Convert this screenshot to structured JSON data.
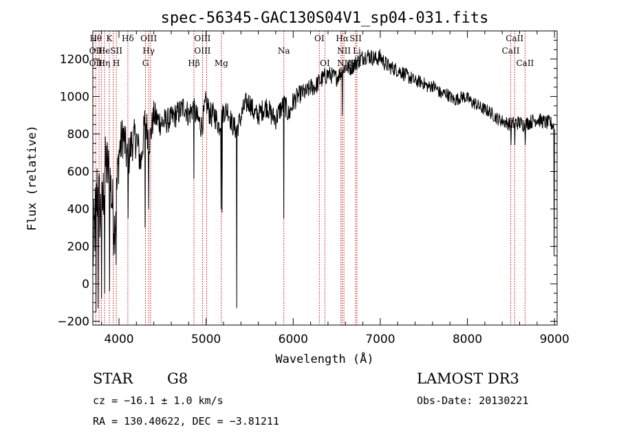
{
  "chart_data": {
    "type": "line",
    "title": "spec-56345-GAC130S04V1_sp04-031.fits",
    "xlabel": "Wavelength (Å)",
    "ylabel": "Flux (relative)",
    "xlim": [
      3700,
      9030
    ],
    "ylim": [
      -220,
      1350
    ],
    "xticks": [
      4000,
      5000,
      6000,
      7000,
      8000,
      9000
    ],
    "yticks": [
      -200,
      0,
      200,
      400,
      600,
      800,
      1000,
      1200
    ],
    "xtick_labels": [
      "4000",
      "5000",
      "6000",
      "7000",
      "8000",
      "9000"
    ],
    "ytick_labels": [
      "−200",
      "0",
      "200",
      "400",
      "600",
      "800",
      "1000",
      "1200"
    ],
    "grid": false,
    "line_color": "#000000",
    "marker_color": "#cc0000",
    "spectrum": {
      "x": [
        3700,
        3750,
        3800,
        3850,
        3900,
        3950,
        4000,
        4050,
        4100,
        4150,
        4200,
        4250,
        4300,
        4350,
        4400,
        4450,
        4500,
        4550,
        4600,
        4650,
        4700,
        4750,
        4800,
        4850,
        4900,
        4950,
        5000,
        5050,
        5100,
        5150,
        5200,
        5250,
        5300,
        5350,
        5400,
        5450,
        5500,
        5550,
        5600,
        5650,
        5700,
        5750,
        5800,
        5850,
        5900,
        5950,
        6000,
        6050,
        6100,
        6150,
        6200,
        6250,
        6300,
        6350,
        6400,
        6450,
        6500,
        6550,
        6600,
        6650,
        6700,
        6750,
        6800,
        6850,
        6900,
        6950,
        7000,
        7050,
        7100,
        7150,
        7200,
        7250,
        7300,
        7350,
        7400,
        7450,
        7500,
        7550,
        7600,
        7650,
        7700,
        7750,
        7800,
        7850,
        7900,
        7950,
        8000,
        8050,
        8100,
        8150,
        8200,
        8250,
        8300,
        8350,
        8400,
        8450,
        8500,
        8550,
        8600,
        8650,
        8700,
        8750,
        8800,
        8850,
        8900,
        8950,
        9000
      ],
      "y": [
        150,
        500,
        350,
        650,
        550,
        300,
        700,
        800,
        650,
        760,
        780,
        640,
        880,
        760,
        900,
        870,
        860,
        870,
        880,
        900,
        920,
        950,
        900,
        940,
        880,
        840,
        970,
        900,
        900,
        840,
        920,
        930,
        850,
        820,
        890,
        960,
        970,
        910,
        900,
        930,
        950,
        900,
        880,
        930,
        960,
        900,
        970,
        1000,
        1020,
        1020,
        1050,
        1050,
        1080,
        1100,
        1120,
        1110,
        1100,
        1130,
        1160,
        1150,
        1170,
        1190,
        1210,
        1220,
        1210,
        1200,
        1210,
        1180,
        1160,
        1150,
        1140,
        1130,
        1110,
        1100,
        1080,
        1080,
        1070,
        1050,
        1060,
        1040,
        1010,
        1020,
        1000,
        980,
        990,
        1000,
        990,
        970,
        960,
        940,
        930,
        920,
        900,
        880,
        870,
        860,
        850,
        860,
        860,
        850,
        860,
        870,
        880,
        870,
        860,
        860,
        840
      ],
      "noise": [
        220,
        220,
        200,
        180,
        180,
        160,
        140,
        120,
        120,
        110,
        110,
        100,
        100,
        90,
        80,
        80,
        80,
        70,
        70,
        70,
        70,
        70,
        70,
        70,
        70,
        70,
        70,
        70,
        70,
        60,
        60,
        60,
        60,
        60,
        60,
        60,
        60,
        60,
        60,
        60,
        60,
        60,
        60,
        60,
        60,
        60,
        60,
        50,
        50,
        50,
        50,
        50,
        50,
        50,
        50,
        45,
        45,
        45,
        45,
        45,
        45,
        45,
        45,
        45,
        45,
        45,
        45,
        45,
        40,
        40,
        40,
        40,
        40,
        40,
        35,
        35,
        35,
        35,
        35,
        35,
        35,
        35,
        35,
        35,
        35,
        35,
        35,
        35,
        35,
        35,
        35,
        35,
        35,
        35,
        35,
        35,
        40,
        40,
        40,
        40,
        40,
        40,
        40,
        40,
        40,
        40,
        40
      ],
      "dips": [
        {
          "x": 3735,
          "y": -150
        },
        {
          "x": 3760,
          "y": -130
        },
        {
          "x": 3800,
          "y": -80
        },
        {
          "x": 3835,
          "y": -50
        },
        {
          "x": 3890,
          "y": -40
        },
        {
          "x": 3934,
          "y": 150
        },
        {
          "x": 3969,
          "y": 100
        },
        {
          "x": 4102,
          "y": 350
        },
        {
          "x": 4300,
          "y": 300
        },
        {
          "x": 4340,
          "y": 400
        },
        {
          "x": 4861,
          "y": 560
        },
        {
          "x": 5170,
          "y": 400
        },
        {
          "x": 5183,
          "y": 380
        },
        {
          "x": 5350,
          "y": -130
        },
        {
          "x": 5893,
          "y": 350
        },
        {
          "x": 6563,
          "y": 900
        },
        {
          "x": 8498,
          "y": 740
        },
        {
          "x": 8542,
          "y": 740
        },
        {
          "x": 8662,
          "y": 740
        },
        {
          "x": 8995,
          "y": 150
        }
      ]
    },
    "line_markers": [
      {
        "x": 3734,
        "top": "Hθ",
        "bottom": "OII"
      },
      {
        "x": 3771,
        "top": "",
        "bottom": "OII"
      },
      {
        "x": 3798,
        "top": "",
        "bottom": ""
      },
      {
        "x": 3835,
        "top": "Hη",
        "bottom": ""
      },
      {
        "x": 3889,
        "top": "HeI",
        "bottom": "Hη"
      },
      {
        "x": 3934,
        "top": "K",
        "bottom": ""
      },
      {
        "x": 3969,
        "top": "SII",
        "bottom": "H"
      },
      {
        "x": 4102,
        "top": "Hδ",
        "bottom": "SII"
      },
      {
        "x": 4304,
        "top": "OIII",
        "bottom": "G"
      },
      {
        "x": 4341,
        "top": "Hγ",
        "bottom": ""
      },
      {
        "x": 4363,
        "top": "",
        "bottom": ""
      },
      {
        "x": 4861,
        "top": "",
        "bottom": "Hβ"
      },
      {
        "x": 4959,
        "top": "OIII",
        "bottom": "OIII"
      },
      {
        "x": 5007,
        "top": "",
        "bottom": ""
      },
      {
        "x": 5175,
        "top": "",
        "bottom": "Mg"
      },
      {
        "x": 5893,
        "top": "",
        "bottom": "Na"
      },
      {
        "x": 6300,
        "top": "OI",
        "bottom": ""
      },
      {
        "x": 6364,
        "top": "",
        "bottom": "OI"
      },
      {
        "x": 6548,
        "top": "",
        "bottom": ""
      },
      {
        "x": 6563,
        "top": "Hα",
        "bottom": "NII"
      },
      {
        "x": 6583,
        "top": "NII",
        "bottom": ""
      },
      {
        "x": 6716,
        "top": "SII",
        "bottom": "SII"
      },
      {
        "x": 6731,
        "top": "Li",
        "bottom": ""
      },
      {
        "x": 8498,
        "top": "CaII",
        "bottom": "CaII"
      },
      {
        "x": 8542,
        "top": "",
        "bottom": ""
      },
      {
        "x": 8662,
        "top": "",
        "bottom": "CaII"
      }
    ],
    "label_rows": {
      "row1": [
        {
          "x": 3734,
          "text": "Hθ"
        },
        {
          "x": 3889,
          "text": "K"
        },
        {
          "x": 4102,
          "text": "Hδ"
        },
        {
          "x": 4340,
          "text": "OIII"
        },
        {
          "x": 4959,
          "text": "OIII"
        },
        {
          "x": 6300,
          "text": "OI"
        },
        {
          "x": 6563,
          "text": "Hα"
        },
        {
          "x": 6716,
          "text": "SII"
        },
        {
          "x": 8542,
          "text": "CaII"
        }
      ],
      "row2": [
        {
          "x": 3734,
          "text": "OII"
        },
        {
          "x": 3830,
          "text": "He"
        },
        {
          "x": 3969,
          "text": "SII"
        },
        {
          "x": 4340,
          "text": "Hγ"
        },
        {
          "x": 4959,
          "text": "OIII"
        },
        {
          "x": 5893,
          "text": "Na"
        },
        {
          "x": 6583,
          "text": "NII"
        },
        {
          "x": 6731,
          "text": "Li"
        },
        {
          "x": 8498,
          "text": "CaII"
        }
      ],
      "row3": [
        {
          "x": 3734,
          "text": "OII"
        },
        {
          "x": 3830,
          "text": "Hη"
        },
        {
          "x": 3969,
          "text": "H"
        },
        {
          "x": 4304,
          "text": "G"
        },
        {
          "x": 4861,
          "text": "Hβ"
        },
        {
          "x": 5175,
          "text": "Mg"
        },
        {
          "x": 6364,
          "text": "OI"
        },
        {
          "x": 6583,
          "text": "NII"
        },
        {
          "x": 6716,
          "text": "SII"
        },
        {
          "x": 8662,
          "text": "CaII"
        }
      ]
    }
  },
  "info": {
    "class": "STAR",
    "subclass": "G8",
    "cz": "cz = −16.1 ± 1.0 km/s",
    "coords": "RA = 130.40622, DEC =  −3.81211",
    "survey": "LAMOST DR3",
    "obs_date": "Obs-Date: 20130221"
  }
}
